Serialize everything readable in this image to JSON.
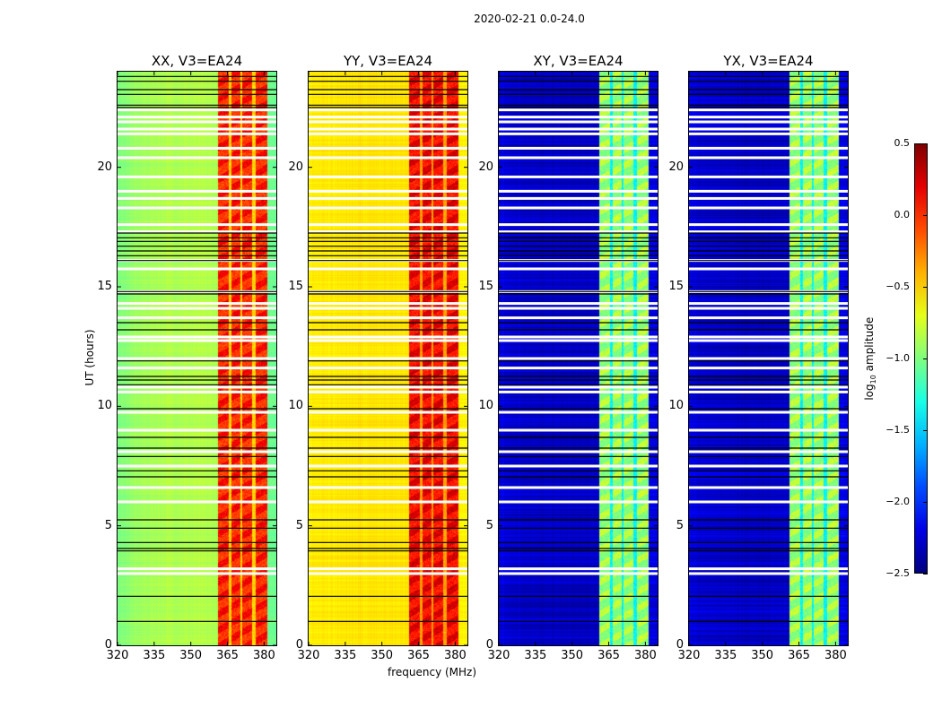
{
  "chart_data": {
    "type": "heatmap",
    "title": "2020-02-21 0.0-24.0",
    "xlabel": "frequency (MHz)",
    "ylabel": "UT (hours)",
    "xlim": [
      320,
      385
    ],
    "ylim": [
      0,
      24
    ],
    "xticks": [
      "320",
      "335",
      "350",
      "365",
      "380"
    ],
    "xtick_values": [
      320,
      335,
      350,
      365,
      380
    ],
    "yticks": [
      "0",
      "5",
      "10",
      "15",
      "20"
    ],
    "ytick_values": [
      0,
      5,
      10,
      15,
      20
    ],
    "colorbar": {
      "label": "log10 amplitude",
      "label_main": "log",
      "label_sub": "10",
      "label_rest": " amplitude",
      "range": [
        -2.5,
        0.5
      ],
      "ticks": [
        "0.5",
        "0.0",
        "−0.5",
        "−1.0",
        "−1.5",
        "−2.0",
        "−2.5"
      ],
      "tick_values": [
        0.5,
        0.0,
        -0.5,
        -1.0,
        -1.5,
        -2.0,
        -2.5
      ],
      "colormap": "jet"
    },
    "panels": [
      {
        "title": "XX, V3=EA24",
        "base": -0.85,
        "edge": -1.05,
        "band": -0.05,
        "gap": -0.5
      },
      {
        "title": "YY, V3=EA24",
        "base": -0.55,
        "edge": -0.6,
        "band": 0.05,
        "gap": -0.35
      },
      {
        "title": "XY, V3=EA24",
        "base": -2.3,
        "edge": -2.2,
        "band": -1.0,
        "gap": -1.4
      },
      {
        "title": "YX, V3=EA24",
        "base": -2.3,
        "edge": -2.2,
        "band": -1.0,
        "gap": -1.4
      }
    ],
    "band_segments_mhz": [
      [
        361,
        365.5
      ],
      [
        366.5,
        370
      ],
      [
        371,
        375
      ],
      [
        376.5,
        381
      ]
    ],
    "flagged_white_hours": [
      22.4,
      22.1,
      21.9,
      21.6,
      21.4,
      20.8,
      20.4,
      19.6,
      19.0,
      18.7,
      18.3,
      17.6,
      17.3,
      16.1,
      15.75,
      14.8,
      14.3,
      14.1,
      13.7,
      12.9,
      12.75,
      12.0,
      11.6,
      10.8,
      10.6,
      9.75,
      9.0,
      8.1,
      7.5,
      6.6,
      6.0,
      3.2,
      3.0
    ],
    "flagged_black_hours": [
      23.8,
      23.6,
      23.25,
      23.05,
      22.6,
      22.5,
      17.25,
      17.05,
      16.9,
      16.7,
      16.5,
      16.3,
      16.1,
      14.8,
      14.7,
      13.5,
      13.2,
      11.9,
      11.25,
      11.1,
      10.9,
      9.9,
      8.7,
      8.25,
      7.9,
      7.3,
      7.05,
      5.25,
      4.9,
      4.3,
      4.05,
      3.95,
      2.05,
      1.0
    ]
  }
}
